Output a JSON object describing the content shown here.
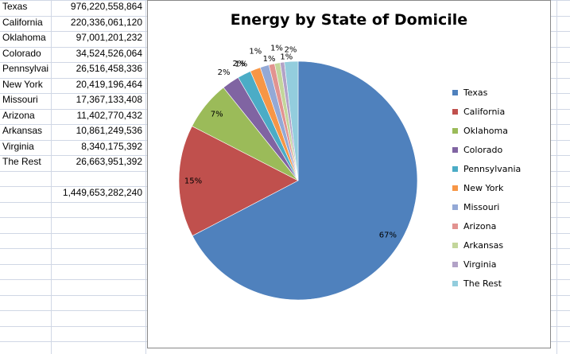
{
  "spreadsheet": {
    "rows": [
      {
        "label": "Texas",
        "value": "976,220,558,864"
      },
      {
        "label": "California",
        "value": "220,336,061,120"
      },
      {
        "label": "Oklahoma",
        "value": "97,001,201,232"
      },
      {
        "label": "Colorado",
        "value": "34,524,526,064"
      },
      {
        "label": "Pennsylvai",
        "value": "26,516,458,336"
      },
      {
        "label": "New York",
        "value": "20,419,196,464"
      },
      {
        "label": "Missouri",
        "value": "17,367,133,408"
      },
      {
        "label": "Arizona",
        "value": "11,402,770,432"
      },
      {
        "label": "Arkansas",
        "value": "10,861,249,536"
      },
      {
        "label": "Virginia",
        "value": "8,340,175,392"
      },
      {
        "label": "The Rest",
        "value": "26,663,951,392"
      }
    ],
    "total": "1,449,653,282,240"
  },
  "chart_data": {
    "type": "pie",
    "title": "Energy by State of Domicile",
    "legend_position": "right",
    "categories": [
      "Texas",
      "California",
      "Oklahoma",
      "Colorado",
      "Pennsylvania",
      "New York",
      "Missouri",
      "Arizona",
      "Arkansas",
      "Virginia",
      "The Rest"
    ],
    "values": [
      976220558864,
      220336061120,
      97001201232,
      34524526064,
      26516458336,
      20419196464,
      17367133408,
      11402770432,
      10861249536,
      8340175392,
      26663951392
    ],
    "labels": [
      "67%",
      "15%",
      "7%",
      "2%",
      "2%",
      "1%",
      "1%",
      "1%",
      "1%",
      "1%",
      "2%"
    ],
    "colors": [
      "#4f81bd",
      "#c0504d",
      "#9bbb59",
      "#8064a2",
      "#4bacc6",
      "#f79646",
      "#94a9d6",
      "#e29390",
      "#c3d69b",
      "#b2a2c7",
      "#93cddd"
    ]
  }
}
